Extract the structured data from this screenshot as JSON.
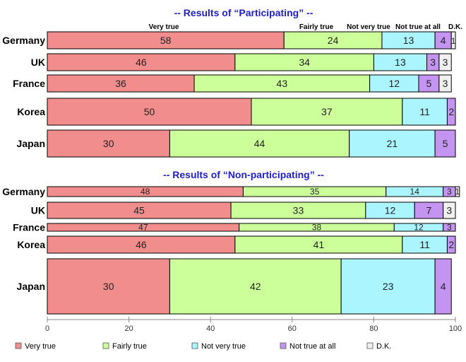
{
  "chart_data": {
    "type": "bar",
    "orientation": "horizontal",
    "stacked": true,
    "xlim": [
      0,
      100
    ],
    "x_ticks": [
      0,
      20,
      40,
      60,
      80,
      100
    ],
    "categories_legend": [
      "Very true",
      "Fairly true",
      "Not very true",
      "Not true at all",
      "D.K."
    ],
    "colors": [
      "#f28d8d",
      "#ccff99",
      "#aaf5ff",
      "#c495f0",
      "#f0f0f0"
    ],
    "legend_position": "bottom",
    "grid": false,
    "panels": [
      {
        "title": "-- Results of “Participating” --",
        "header_labels": [
          "Very true",
          "Fairly true",
          "Not very true",
          "Not true at all",
          "D.K."
        ],
        "rows": [
          {
            "country": "Germany",
            "values": [
              58,
              24,
              13,
              4,
              1
            ]
          },
          {
            "country": "UK",
            "values": [
              46,
              34,
              13,
              3,
              3
            ]
          },
          {
            "country": "France",
            "values": [
              36,
              43,
              12,
              5,
              3
            ]
          },
          {
            "country": "Korea",
            "values": [
              50,
              37,
              11,
              2,
              0
            ]
          },
          {
            "country": "Japan",
            "values": [
              30,
              44,
              21,
              5,
              0
            ]
          }
        ],
        "display_labels": [
          [
            "58",
            "24",
            "13",
            "4",
            "1"
          ],
          [
            "46",
            "34",
            "13",
            "3",
            "3"
          ],
          [
            "36",
            "43",
            "12",
            "5",
            "3"
          ],
          [
            "50",
            "37",
            "11",
            "2",
            ""
          ],
          [
            "30",
            "44",
            "21",
            "5",
            ""
          ]
        ]
      },
      {
        "title": "-- Results of “Non-participating” --",
        "rows": [
          {
            "country": "Germany",
            "values": [
              48,
              35,
              14,
              3,
              1
            ]
          },
          {
            "country": "UK",
            "values": [
              45,
              33,
              12,
              7,
              3
            ]
          },
          {
            "country": "France",
            "values": [
              47,
              38,
              12,
              3,
              0
            ]
          },
          {
            "country": "Korea",
            "values": [
              46,
              41,
              11,
              2,
              0
            ]
          },
          {
            "country": "Japan",
            "values": [
              30,
              42,
              23,
              4,
              0
            ]
          }
        ],
        "display_labels": [
          [
            "48",
            "35",
            "14",
            "3",
            "1"
          ],
          [
            "45",
            "33",
            "12",
            "7",
            "3"
          ],
          [
            "47",
            "38",
            "12",
            "3",
            ""
          ],
          [
            "46",
            "41",
            "11",
            "2",
            ""
          ],
          [
            "30",
            "42",
            "23",
            "4",
            ""
          ]
        ]
      }
    ]
  }
}
